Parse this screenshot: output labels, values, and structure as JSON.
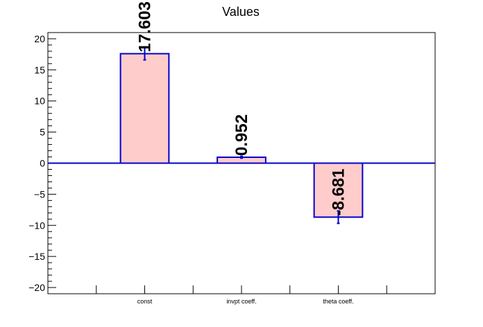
{
  "chart_data": {
    "type": "bar",
    "title": "Values",
    "xlabel": "",
    "ylabel": "",
    "categories": [
      "",
      "const",
      "",
      "invpt coeff.",
      "",
      "theta coeff.",
      ""
    ],
    "bars": [
      {
        "category": "const",
        "value": 17.603,
        "label": "17.603",
        "error": 1.0
      },
      {
        "category": "invpt coeff.",
        "value": 0.952,
        "label": "0.952",
        "error": 0.15
      },
      {
        "category": "theta coeff.",
        "value": -8.681,
        "label": "-8.681",
        "error": 1.0
      }
    ],
    "ylim": [
      -21,
      21
    ],
    "yticks": [
      -20,
      -15,
      -10,
      -5,
      0,
      5,
      10,
      15,
      20
    ],
    "ytick_labels": [
      "−20",
      "−15",
      "−10",
      "−5",
      "0",
      "5",
      "10",
      "15",
      "20"
    ],
    "grid": false,
    "legend": "none",
    "colors": {
      "bar_fill": "#ffcccc",
      "bar_edge": "#0000cc",
      "zero_line": "#0000cc",
      "error_bar": "#0000cc",
      "axis": "#000000",
      "value_label": "#000000"
    }
  }
}
